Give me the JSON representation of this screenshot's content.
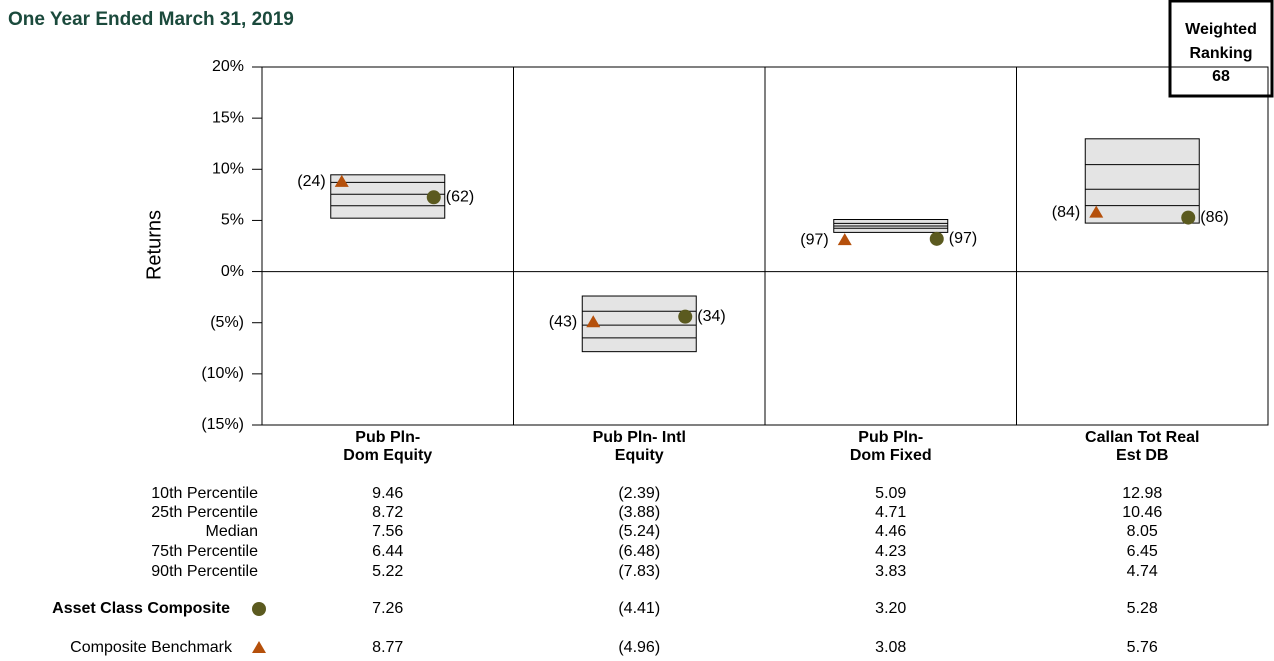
{
  "chart_data": {
    "type": "floating_bar",
    "title": "One Year Ended March 31, 2019",
    "ylabel": "Returns",
    "ranking_title": [
      "Weighted",
      "Ranking"
    ],
    "ranking_value": 68,
    "categories": [
      [
        "Pub Pln-",
        "Dom Equity"
      ],
      [
        "Pub Pln- Intl",
        "Equity"
      ],
      [
        "Pub Pln-",
        "Dom Fixed"
      ],
      [
        "Callan Tot Real",
        "Est DB"
      ]
    ],
    "ylim": [
      -15,
      20
    ],
    "yticks": [
      {
        "value": 20,
        "label": "20%"
      },
      {
        "value": 15,
        "label": "15%"
      },
      {
        "value": 10,
        "label": "10%"
      },
      {
        "value": 5,
        "label": "5%"
      },
      {
        "value": 0,
        "label": "0%"
      },
      {
        "value": -5,
        "label": "(5%)"
      },
      {
        "value": -10,
        "label": "(10%)"
      },
      {
        "value": -15,
        "label": "(15%)"
      }
    ],
    "box_color": "#e4e4e4",
    "negative_color": "#e8000b",
    "percentiles": [
      {
        "name": "10th Percentile",
        "values": [
          9.46,
          -2.39,
          5.09,
          12.98
        ],
        "value_labels": [
          "9.46",
          "(2.39)",
          "5.09",
          "12.98"
        ]
      },
      {
        "name": "25th Percentile",
        "values": [
          8.72,
          -3.88,
          4.71,
          10.46
        ],
        "value_labels": [
          "8.72",
          "(3.88)",
          "4.71",
          "10.46"
        ]
      },
      {
        "name": "Median",
        "values": [
          7.56,
          -5.24,
          4.46,
          8.05
        ],
        "value_labels": [
          "7.56",
          "(5.24)",
          "4.46",
          "8.05"
        ]
      },
      {
        "name": "75th Percentile",
        "values": [
          6.44,
          -6.48,
          4.23,
          6.45
        ],
        "value_labels": [
          "6.44",
          "(6.48)",
          "4.23",
          "6.45"
        ]
      },
      {
        "name": "90th Percentile",
        "values": [
          5.22,
          -7.83,
          3.83,
          4.74
        ],
        "value_labels": [
          "5.22",
          "(7.83)",
          "3.83",
          "4.74"
        ]
      }
    ],
    "series": [
      {
        "name": "Asset Class Composite",
        "marker": "circle",
        "color": "#5b5a1f",
        "values": [
          7.26,
          -4.41,
          3.2,
          5.28
        ],
        "value_labels": [
          "7.26",
          "(4.41)",
          "3.20",
          "5.28"
        ],
        "ranks": [
          62,
          34,
          97,
          86
        ],
        "rank_labels": [
          "(62)",
          "(34)",
          "(97)",
          "(86)"
        ]
      },
      {
        "name": "Composite Benchmark",
        "marker": "triangle",
        "color": "#b5500b",
        "values": [
          8.77,
          -4.96,
          3.08,
          5.76
        ],
        "value_labels": [
          "8.77",
          "(4.96)",
          "3.08",
          "5.76"
        ],
        "ranks": [
          24,
          43,
          97,
          84
        ],
        "rank_labels": [
          "(24)",
          "(43)",
          "(97)",
          "(84)"
        ]
      }
    ]
  }
}
